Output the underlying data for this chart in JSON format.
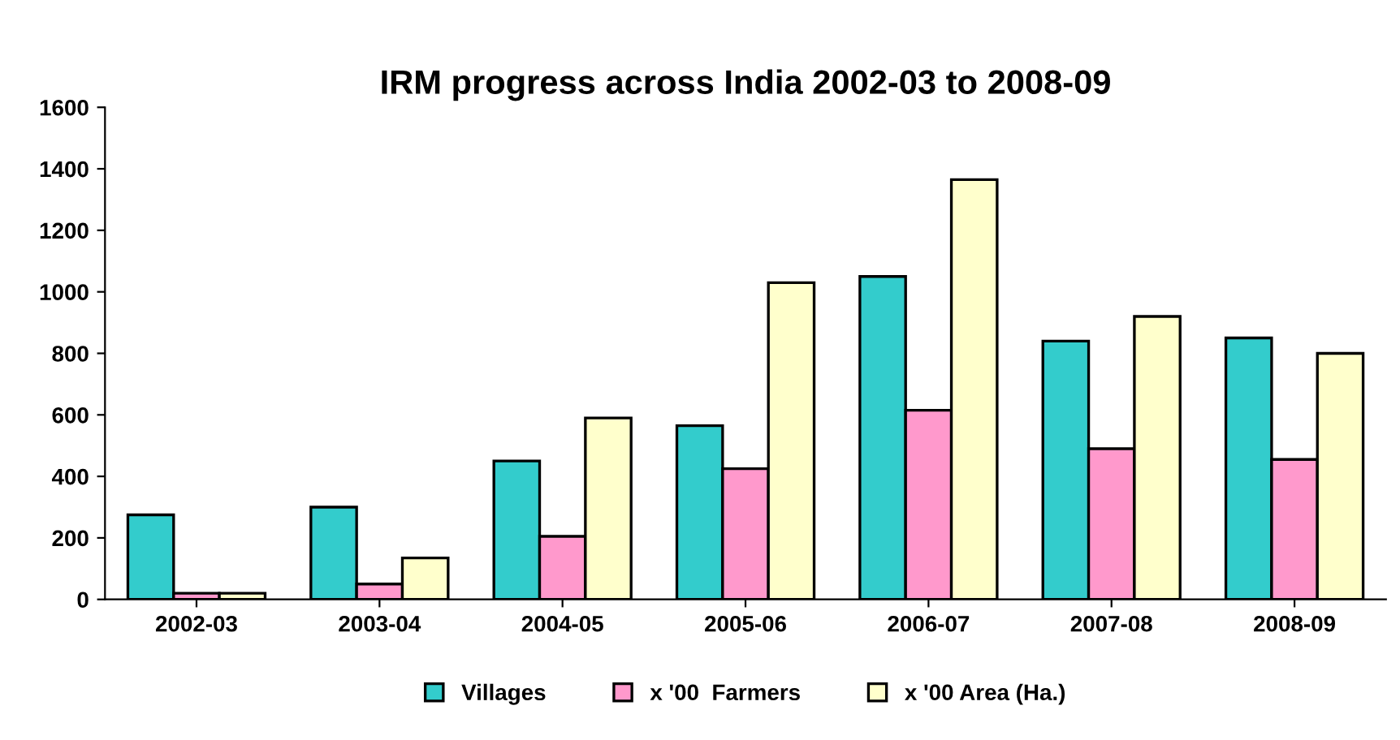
{
  "chart_data": {
    "type": "bar",
    "title": "IRM progress across India 2002-03 to 2008-09",
    "categories": [
      "2002-03",
      "2003-04",
      "2004-05",
      "2005-06",
      "2006-07",
      "2007-08",
      "2008-09"
    ],
    "series": [
      {
        "name": "Villages",
        "color": "#33cccc",
        "values": [
          275,
          300,
          450,
          565,
          1050,
          840,
          850
        ]
      },
      {
        "name": "x '00  Farmers",
        "color": "#ff99cc",
        "values": [
          20,
          50,
          205,
          425,
          615,
          490,
          455
        ]
      },
      {
        "name": "x '00 Area (Ha.)",
        "color": "#ffffcc",
        "values": [
          20,
          135,
          590,
          1030,
          1365,
          920,
          800
        ]
      }
    ],
    "ylim": [
      0,
      1600
    ],
    "yticks": [
      0,
      200,
      400,
      600,
      800,
      1000,
      1200,
      1400,
      1600
    ],
    "grid": false,
    "legend": "bottom"
  }
}
